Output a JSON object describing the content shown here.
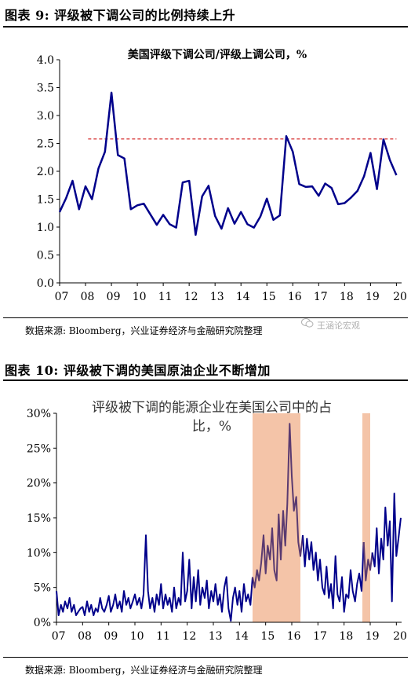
{
  "figure1": {
    "label": "图表 9:  评级被下调公司的比例持续上升",
    "source": "数据来源:  Bloomberg，兴业证券经济与金融研究院整理"
  },
  "figure2": {
    "label": "图表 10:  评级被下调的美国原油企业不断增加",
    "source": "数据来源:  Bloomberg，兴业证券经济与金融研究院整理"
  },
  "watermark": {
    "text": "王涵论宏观",
    "icon": "wechat-icon",
    "color": "#b0b0b0"
  },
  "chart_data": [
    {
      "type": "line",
      "title": "美国评级下调公司/评级上调公司，%",
      "xlabel": "",
      "ylabel": "",
      "x_ticks": [
        "07",
        "08",
        "09",
        "10",
        "11",
        "12",
        "13",
        "14",
        "15",
        "16",
        "17",
        "18",
        "19",
        "20"
      ],
      "ylim": [
        0,
        4.0
      ],
      "y_ticks": [
        "0.0",
        "0.5",
        "1.0",
        "1.5",
        "2.0",
        "2.5",
        "3.0",
        "3.5",
        "4.0"
      ],
      "grid": false,
      "line_color": "#00008b",
      "reference_line": {
        "value": 2.58,
        "color": "#cc0000",
        "style": "dashed",
        "x_start": 8.1,
        "x_end": 20
      },
      "series": [
        {
          "values": [
            [
              7.0,
              1.27
            ],
            [
              7.25,
              1.52
            ],
            [
              7.5,
              1.83
            ],
            [
              7.75,
              1.32
            ],
            [
              8.0,
              1.73
            ],
            [
              8.25,
              1.5
            ],
            [
              8.5,
              2.05
            ],
            [
              8.75,
              2.35
            ],
            [
              9.0,
              3.41
            ],
            [
              9.25,
              2.29
            ],
            [
              9.5,
              2.23
            ],
            [
              9.75,
              1.32
            ],
            [
              10.0,
              1.39
            ],
            [
              10.25,
              1.42
            ],
            [
              10.5,
              1.23
            ],
            [
              10.75,
              1.04
            ],
            [
              11.0,
              1.22
            ],
            [
              11.25,
              1.05
            ],
            [
              11.5,
              0.99
            ],
            [
              11.75,
              1.8
            ],
            [
              12.0,
              1.83
            ],
            [
              12.25,
              0.86
            ],
            [
              12.5,
              1.55
            ],
            [
              12.75,
              1.74
            ],
            [
              13.0,
              1.2
            ],
            [
              13.25,
              0.97
            ],
            [
              13.5,
              1.34
            ],
            [
              13.75,
              1.06
            ],
            [
              14.0,
              1.27
            ],
            [
              14.25,
              1.05
            ],
            [
              14.5,
              0.99
            ],
            [
              14.75,
              1.19
            ],
            [
              15.0,
              1.51
            ],
            [
              15.25,
              1.13
            ],
            [
              15.5,
              1.21
            ],
            [
              15.75,
              2.63
            ],
            [
              16.0,
              2.35
            ],
            [
              16.25,
              1.77
            ],
            [
              16.5,
              1.72
            ],
            [
              16.75,
              1.73
            ],
            [
              17.0,
              1.56
            ],
            [
              17.25,
              1.78
            ],
            [
              17.5,
              1.7
            ],
            [
              17.75,
              1.41
            ],
            [
              18.0,
              1.43
            ],
            [
              18.25,
              1.53
            ],
            [
              18.5,
              1.65
            ],
            [
              18.75,
              1.91
            ],
            [
              19.0,
              2.33
            ],
            [
              19.25,
              1.68
            ],
            [
              19.5,
              2.57
            ],
            [
              19.75,
              2.2
            ],
            [
              20.0,
              1.93
            ]
          ]
        }
      ]
    },
    {
      "type": "line",
      "title": "评级被下调的能源企业在美国公司中的占比，%",
      "xlabel": "",
      "ylabel": "",
      "x_ticks": [
        "07",
        "08",
        "09",
        "10",
        "11",
        "12",
        "13",
        "14",
        "15",
        "16",
        "17",
        "18",
        "19",
        "20"
      ],
      "ylim": [
        0,
        30
      ],
      "y_ticks": [
        "0%",
        "5%",
        "10%",
        "15%",
        "20%",
        "25%",
        "30%"
      ],
      "grid": false,
      "line_color": "#00008b",
      "highlight_line_color": "#5a3a70",
      "shaded_regions": [
        {
          "from": 14.5,
          "to": 16.33,
          "color": "#f4c4a8"
        },
        {
          "from": 18.7,
          "to": 19.0,
          "color": "#f4c4a8"
        }
      ],
      "series": [
        {
          "values": [
            [
              7.0,
              4.5
            ],
            [
              7.08,
              1.0
            ],
            [
              7.17,
              2.5
            ],
            [
              7.25,
              1.5
            ],
            [
              7.33,
              3.0
            ],
            [
              7.42,
              2.0
            ],
            [
              7.5,
              3.5
            ],
            [
              7.58,
              1.5
            ],
            [
              7.67,
              2.5
            ],
            [
              7.75,
              1.0
            ],
            [
              7.83,
              1.5
            ],
            [
              7.92,
              2.0
            ],
            [
              8.0,
              2.2
            ],
            [
              8.08,
              1.0
            ],
            [
              8.17,
              3.0
            ],
            [
              8.25,
              1.5
            ],
            [
              8.33,
              2.5
            ],
            [
              8.42,
              1.0
            ],
            [
              8.5,
              2.0
            ],
            [
              8.58,
              1.5
            ],
            [
              8.67,
              3.5
            ],
            [
              8.75,
              2.0
            ],
            [
              8.83,
              1.5
            ],
            [
              8.92,
              2.5
            ],
            [
              9.0,
              3.8
            ],
            [
              9.08,
              1.5
            ],
            [
              9.17,
              2.5
            ],
            [
              9.25,
              4.0
            ],
            [
              9.33,
              2.0
            ],
            [
              9.42,
              3.0
            ],
            [
              9.5,
              1.5
            ],
            [
              9.58,
              4.5
            ],
            [
              9.67,
              2.5
            ],
            [
              9.75,
              3.5
            ],
            [
              9.83,
              2.0
            ],
            [
              9.92,
              3.0
            ],
            [
              10.0,
              4.0
            ],
            [
              10.08,
              2.5
            ],
            [
              10.17,
              3.5
            ],
            [
              10.25,
              2.0
            ],
            [
              10.33,
              4.0
            ],
            [
              10.42,
              12.5
            ],
            [
              10.5,
              4.5
            ],
            [
              10.58,
              2.0
            ],
            [
              10.67,
              3.5
            ],
            [
              10.75,
              1.5
            ],
            [
              10.83,
              4.0
            ],
            [
              10.92,
              2.5
            ],
            [
              11.0,
              5.5
            ],
            [
              11.08,
              2.0
            ],
            [
              11.17,
              4.0
            ],
            [
              11.25,
              2.5
            ],
            [
              11.33,
              3.5
            ],
            [
              11.42,
              1.5
            ],
            [
              11.5,
              5.0
            ],
            [
              11.58,
              2.0
            ],
            [
              11.67,
              3.5
            ],
            [
              11.75,
              2.5
            ],
            [
              11.83,
              10.0
            ],
            [
              11.92,
              3.0
            ],
            [
              12.0,
              4.5
            ],
            [
              12.08,
              9.0
            ],
            [
              12.17,
              2.0
            ],
            [
              12.25,
              6.5
            ],
            [
              12.33,
              3.0
            ],
            [
              12.42,
              7.5
            ],
            [
              12.5,
              2.5
            ],
            [
              12.58,
              5.0
            ],
            [
              12.67,
              3.5
            ],
            [
              12.75,
              6.0
            ],
            [
              12.83,
              2.0
            ],
            [
              12.92,
              4.5
            ],
            [
              13.0,
              3.0
            ],
            [
              13.08,
              5.5
            ],
            [
              13.17,
              2.5
            ],
            [
              13.25,
              4.0
            ],
            [
              13.33,
              1.5
            ],
            [
              13.42,
              5.0
            ],
            [
              13.5,
              6.5
            ],
            [
              13.58,
              2.0
            ],
            [
              13.67,
              0.2
            ],
            [
              13.75,
              3.5
            ],
            [
              13.83,
              5.0
            ],
            [
              13.92,
              2.5
            ],
            [
              14.0,
              4.5
            ],
            [
              14.08,
              1.5
            ],
            [
              14.17,
              5.5
            ],
            [
              14.25,
              3.0
            ],
            [
              14.33,
              4.0
            ],
            [
              14.42,
              2.5
            ],
            [
              14.5,
              6.5
            ],
            [
              14.58,
              5.0
            ],
            [
              14.67,
              7.5
            ],
            [
              14.75,
              6.0
            ],
            [
              14.83,
              8.5
            ],
            [
              14.92,
              12.5
            ],
            [
              15.0,
              7.0
            ],
            [
              15.08,
              11.0
            ],
            [
              15.17,
              9.0
            ],
            [
              15.25,
              13.5
            ],
            [
              15.33,
              7.5
            ],
            [
              15.42,
              6.0
            ],
            [
              15.5,
              15.5
            ],
            [
              15.58,
              9.0
            ],
            [
              15.67,
              16.0
            ],
            [
              15.75,
              11.0
            ],
            [
              15.83,
              17.0
            ],
            [
              15.92,
              28.5
            ],
            [
              16.0,
              21.0
            ],
            [
              16.08,
              16.0
            ],
            [
              16.17,
              18.0
            ],
            [
              16.25,
              11.5
            ],
            [
              16.33,
              9.5
            ],
            [
              16.42,
              12.5
            ],
            [
              16.5,
              8.0
            ],
            [
              16.58,
              12.0
            ],
            [
              16.67,
              9.0
            ],
            [
              16.75,
              11.5
            ],
            [
              16.83,
              7.5
            ],
            [
              16.92,
              10.0
            ],
            [
              17.0,
              6.0
            ],
            [
              17.08,
              9.0
            ],
            [
              17.17,
              5.0
            ],
            [
              17.25,
              4.0
            ],
            [
              17.33,
              8.0
            ],
            [
              17.42,
              3.5
            ],
            [
              17.5,
              5.5
            ],
            [
              17.58,
              2.0
            ],
            [
              17.67,
              9.5
            ],
            [
              17.75,
              4.0
            ],
            [
              17.83,
              3.0
            ],
            [
              17.92,
              6.5
            ],
            [
              18.0,
              1.5
            ],
            [
              18.08,
              4.0
            ],
            [
              18.17,
              3.5
            ],
            [
              18.25,
              7.5
            ],
            [
              18.33,
              4.5
            ],
            [
              18.42,
              3.0
            ],
            [
              18.5,
              5.5
            ],
            [
              18.58,
              7.0
            ],
            [
              18.67,
              4.5
            ],
            [
              18.75,
              11.5
            ],
            [
              18.83,
              6.0
            ],
            [
              18.92,
              9.0
            ],
            [
              19.0,
              7.5
            ],
            [
              19.08,
              10.0
            ],
            [
              19.17,
              8.0
            ],
            [
              19.25,
              13.5
            ],
            [
              19.33,
              7.0
            ],
            [
              19.42,
              12.0
            ],
            [
              19.5,
              9.0
            ],
            [
              19.58,
              16.5
            ],
            [
              19.67,
              11.0
            ],
            [
              19.75,
              14.5
            ],
            [
              19.83,
              3.0
            ],
            [
              19.92,
              18.5
            ],
            [
              20.0,
              9.5
            ],
            [
              20.08,
              12.0
            ],
            [
              20.17,
              15.0
            ]
          ]
        }
      ]
    }
  ]
}
